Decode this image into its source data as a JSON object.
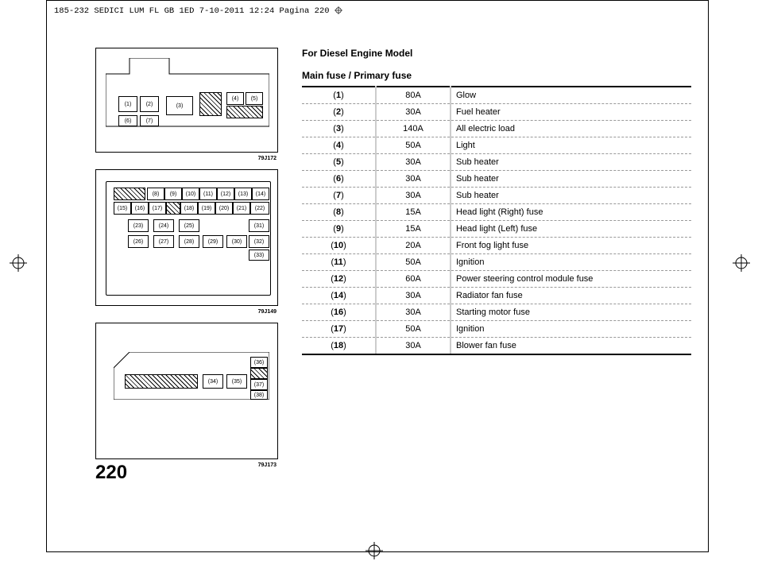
{
  "header": "185-232 SEDICI LUM FL GB 1ED  7-10-2011  12:24  Pagina 220",
  "page_number": "220",
  "section_title": "For Diesel Engine Model",
  "subsection_title": "Main fuse / Primary fuse",
  "diagram_labels": {
    "d1": "79J172",
    "d2": "79J149",
    "d3": "79J173"
  },
  "diagram1": {
    "cells": [
      "(1)",
      "(2)",
      "(3)",
      "(4)",
      "(5)",
      "(6)",
      "(7)"
    ]
  },
  "diagram2": {
    "cells": [
      "(8)",
      "(9)",
      "(10)",
      "(11)",
      "(12)",
      "(13)",
      "(14)",
      "(15)",
      "(16)",
      "(17)",
      "(18)",
      "(19)",
      "(20)",
      "(21)",
      "(22)",
      "(23)",
      "(24)",
      "(25)",
      "(26)",
      "(27)",
      "(28)",
      "(29)",
      "(30)",
      "(31)",
      "(32)",
      "(33)"
    ]
  },
  "diagram3": {
    "cells": [
      "(34)",
      "(35)",
      "(36)",
      "(37)",
      "(38)"
    ]
  },
  "fuse_table": {
    "rows": [
      {
        "num": "(1)",
        "amp": "80A",
        "desc": "Glow"
      },
      {
        "num": "(2)",
        "amp": "30A",
        "desc": "Fuel heater"
      },
      {
        "num": "(3)",
        "amp": "140A",
        "desc": "All electric load"
      },
      {
        "num": "(4)",
        "amp": "50A",
        "desc": "Light"
      },
      {
        "num": "(5)",
        "amp": "30A",
        "desc": "Sub heater"
      },
      {
        "num": "(6)",
        "amp": "30A",
        "desc": "Sub heater"
      },
      {
        "num": "(7)",
        "amp": "30A",
        "desc": "Sub heater"
      },
      {
        "num": "(8)",
        "amp": "15A",
        "desc": "Head light (Right) fuse"
      },
      {
        "num": "(9)",
        "amp": "15A",
        "desc": "Head light (Left) fuse"
      },
      {
        "num": "(10)",
        "amp": "20A",
        "desc": "Front fog light fuse"
      },
      {
        "num": "(11)",
        "amp": "50A",
        "desc": "Ignition"
      },
      {
        "num": "(12)",
        "amp": "60A",
        "desc": "Power steering control module fuse"
      },
      {
        "num": "(14)",
        "amp": "30A",
        "desc": "Radiator fan fuse"
      },
      {
        "num": "(16)",
        "amp": "30A",
        "desc": "Starting motor fuse"
      },
      {
        "num": "(17)",
        "amp": "50A",
        "desc": "Ignition"
      },
      {
        "num": "(18)",
        "amp": "30A",
        "desc": "Blower fan fuse"
      }
    ]
  }
}
